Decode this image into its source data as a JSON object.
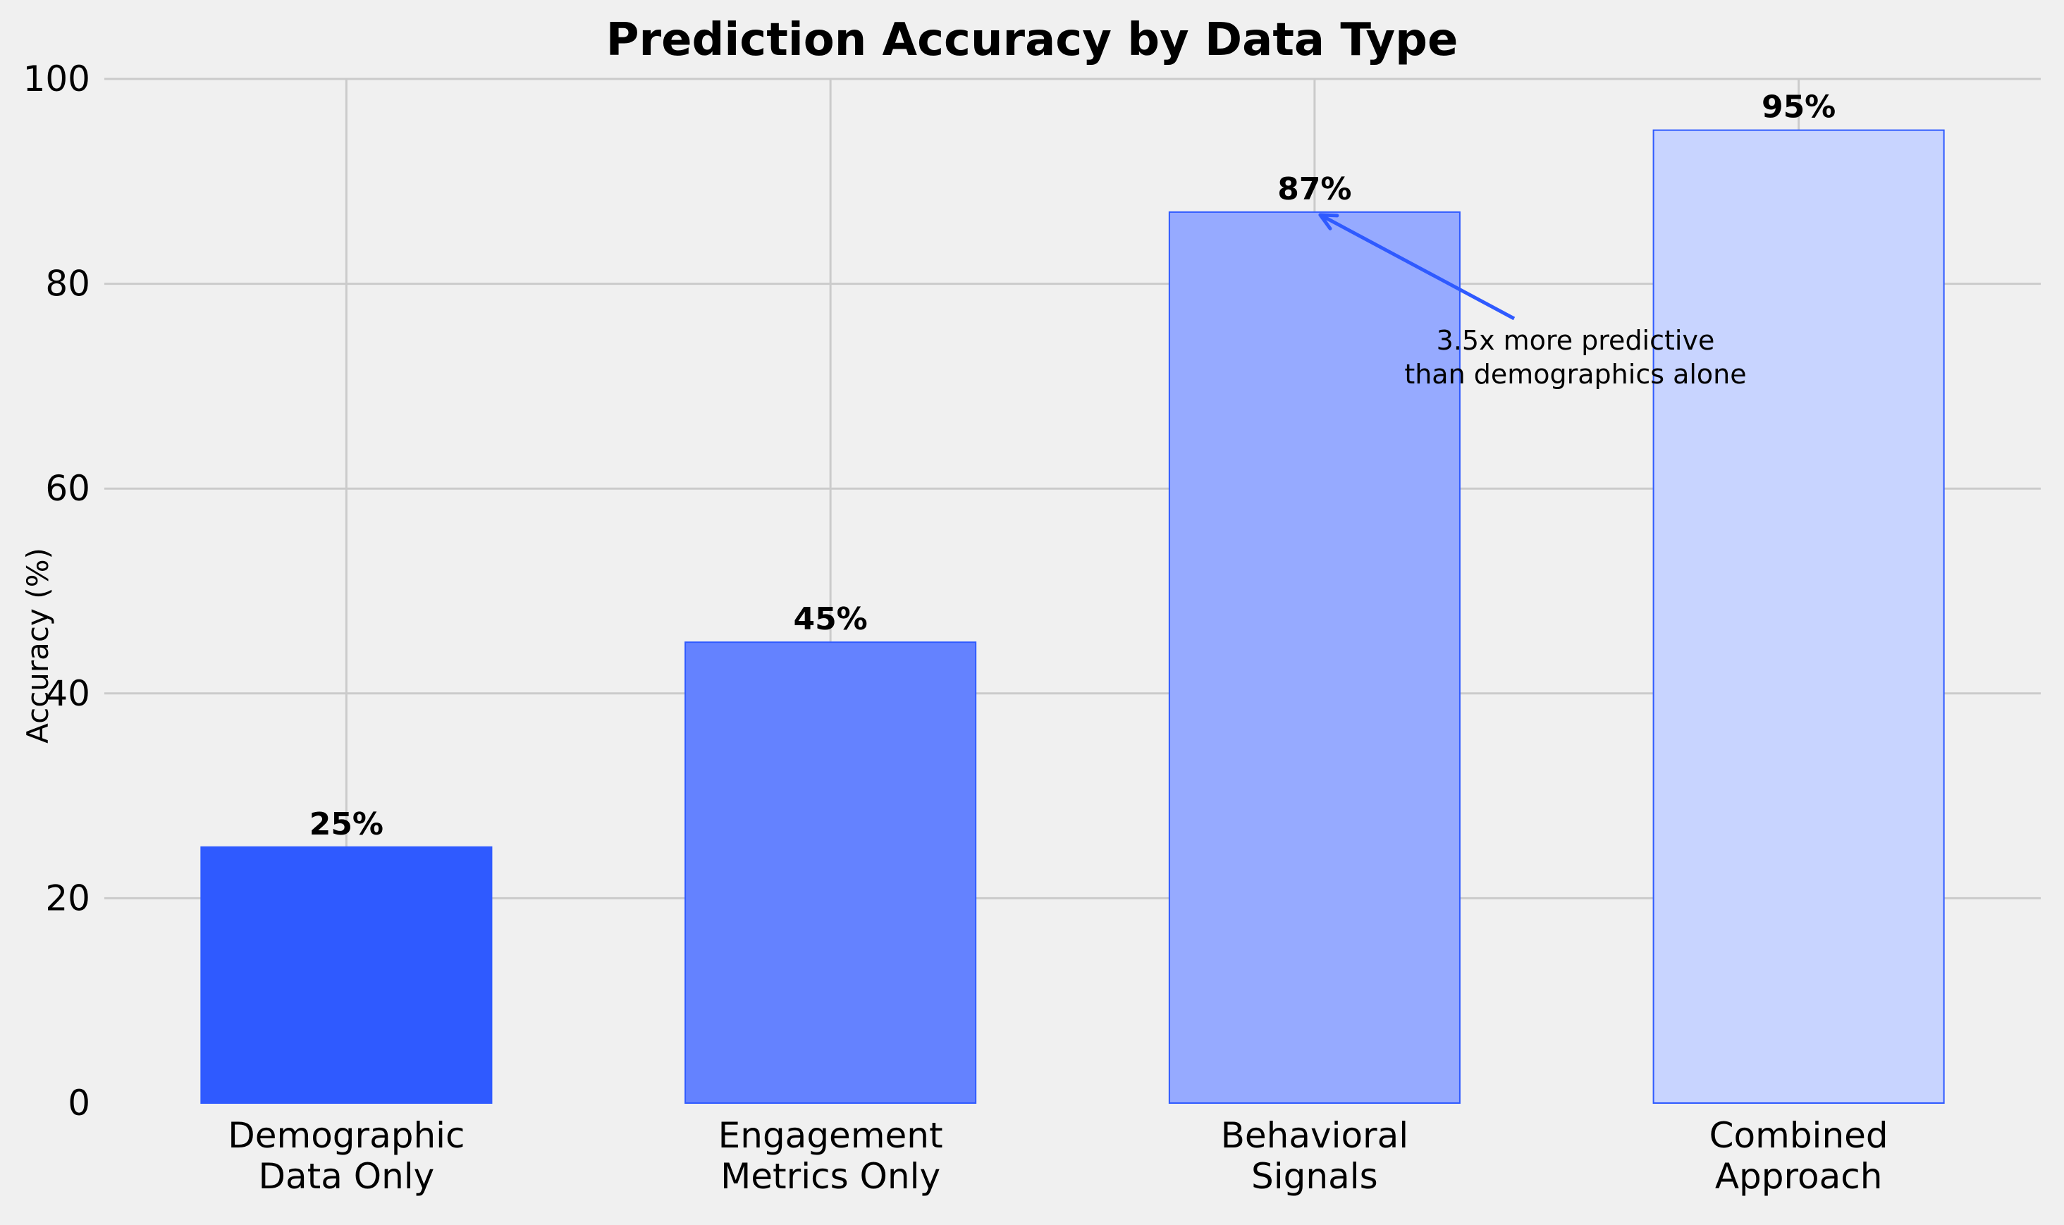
{
  "chart_data": {
    "type": "bar",
    "title": "Prediction Accuracy by Data Type",
    "xlabel": "",
    "ylabel": "Accuracy (%)",
    "ylim": [
      0,
      100
    ],
    "yticks": [
      0,
      20,
      40,
      60,
      80,
      100
    ],
    "grid": true,
    "categories": [
      [
        "Demographic",
        "Data Only"
      ],
      [
        "Engagement",
        "Metrics Only"
      ],
      [
        "Behavioral",
        "Signals"
      ],
      [
        "Combined",
        "Approach"
      ]
    ],
    "values": [
      25,
      45,
      87,
      95
    ],
    "value_labels": [
      "25%",
      "45%",
      "87%",
      "95%"
    ],
    "bar_colors": [
      "#2f5aff",
      "#6482ff",
      "#96aaff",
      "#c8d4ff"
    ],
    "edge_color": "#2f5aff",
    "annotation": {
      "lines": [
        "3.5x more predictive",
        "than demographics alone"
      ],
      "target_category_index": 2,
      "target_value": 87,
      "arrow_color": "#2f5aff"
    }
  }
}
